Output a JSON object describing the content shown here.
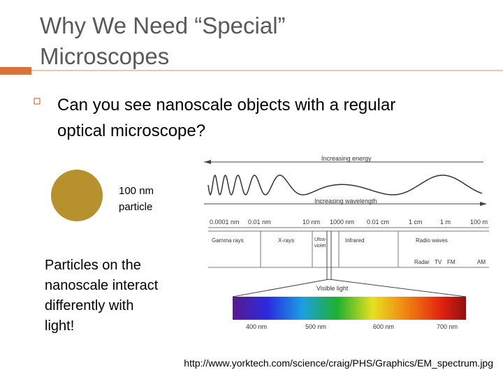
{
  "header": {
    "title_lines": [
      "Why We Need “Special”",
      "Microscopes"
    ]
  },
  "bullet_lines": [
    "Can you see nanoscale objects with a regular",
    "optical microscope?"
  ],
  "particle_label": [
    "100 nm",
    "particle"
  ],
  "note_lines": [
    "Particles on the",
    "nanoscale interact",
    "differently with",
    "light!"
  ],
  "figure": {
    "energy_label": "Increasing energy",
    "wavelength_label": "Increasing wavelength",
    "scale": [
      "0.0001 nm",
      "0.01 nm",
      "10 nm",
      "1000 nm",
      "0.01 cm",
      "1 cm",
      "1 m",
      "100 m"
    ],
    "regions": [
      "Gamma rays",
      "X-rays",
      "Infrared",
      "Radio waves"
    ],
    "ultraviolet": [
      "Ultra-",
      "violet"
    ],
    "radio_bands": [
      "Radar",
      "TV",
      "FM",
      "AM"
    ],
    "visible_label": "Visible light",
    "visible_scale": [
      "400 nm",
      "500 nm",
      "600 nm",
      "700 nm"
    ]
  },
  "source": "http://www.yorktech.com/science/craig/PHS/Graphics/EM_spectrum.jpg"
}
